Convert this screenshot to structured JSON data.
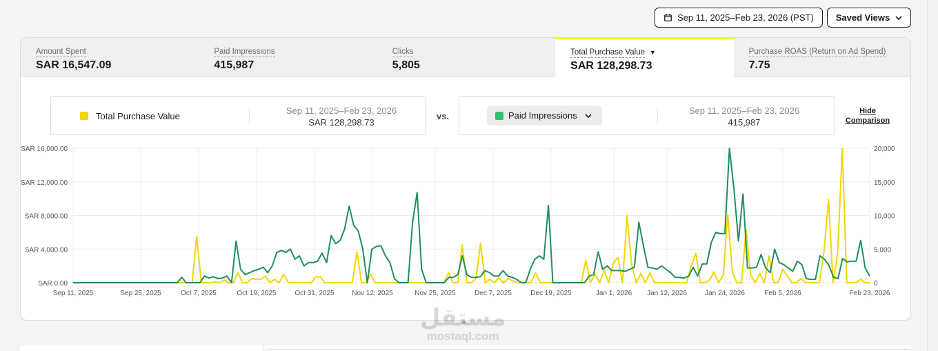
{
  "header": {
    "date_range_label": "Sep 11, 2025–Feb 23, 2026 (PST)",
    "saved_views_label": "Saved Views"
  },
  "metrics": [
    {
      "label": "Amount Spent",
      "value": "SAR 16,547.09"
    },
    {
      "label": "Paid Impressions",
      "value": "415,987"
    },
    {
      "label": "Clicks",
      "value": "5,805"
    },
    {
      "label": "Total Purchase Value",
      "value": "SAR 128,298.73"
    },
    {
      "label": "Purchase ROAS (Return on Ad Spend)",
      "value": "7.75"
    }
  ],
  "comparison": {
    "primary": {
      "name": "Total Purchase Value",
      "range": "Sep 11, 2025–Feb 23, 2026",
      "total": "SAR 128,298.73",
      "color": "#f2d600"
    },
    "vs_label": "vs.",
    "secondary": {
      "name": "Paid Impressions",
      "range": "Sep 11, 2025–Feb 23, 2026",
      "total": "415,987",
      "color": "#2fbf71"
    },
    "hide_label_line1": "Hide",
    "hide_label_line2": "Comparison"
  },
  "chart_data": {
    "type": "line",
    "x_start": "2025-09-11",
    "x_end": "2026-02-23",
    "x_ticks": [
      "Sep 11, 2025",
      "Sep 25, 2025",
      "Oct 7, 2025",
      "Oct 19, 2025",
      "Oct 31, 2025",
      "Nov 12, 2025",
      "Nov 25, 2025",
      "Dec 7, 2025",
      "Dec 19, 2025",
      "Jan 1, 2026",
      "Jan 12, 2026",
      "Jan 24, 2026",
      "Feb 5, 2026",
      "Feb 23, 2026"
    ],
    "y_left_ticks": [
      "SAR 0.00",
      "SAR 4,000.00",
      "SAR 8,000.00",
      "SAR 12,000.00",
      "SAR 16,000.00"
    ],
    "y_left_range": [
      0,
      16000
    ],
    "y_right_ticks": [
      "0",
      "5,000",
      "10,000",
      "15,000",
      "20,000"
    ],
    "y_right_range": [
      0,
      20000
    ],
    "grid": true,
    "series": [
      {
        "name": "Total Purchase Value",
        "axis": "left",
        "color": "#f2d600",
        "values": [
          0,
          0,
          0,
          0,
          0,
          0,
          0,
          0,
          0,
          0,
          0,
          0,
          0,
          0,
          0,
          0,
          0,
          0,
          0,
          0,
          0,
          0,
          0,
          0,
          0,
          0,
          0,
          5500,
          0,
          0,
          0,
          100,
          0,
          300,
          0,
          0,
          1200,
          0,
          0,
          500,
          400,
          400,
          800,
          0,
          400,
          0,
          1000,
          0,
          0,
          0,
          0,
          0,
          0,
          700,
          700,
          0,
          0,
          0,
          0,
          0,
          0,
          0,
          3700,
          0,
          0,
          1000,
          0,
          0,
          0,
          0,
          0,
          0,
          0,
          0,
          0,
          0,
          0,
          0,
          0,
          0,
          0,
          0,
          1200,
          0,
          0,
          4500,
          0,
          0,
          500,
          4700,
          0,
          400,
          0,
          600,
          0,
          500,
          200,
          0,
          0,
          0,
          0,
          1200,
          0,
          0,
          0,
          0,
          0,
          0,
          0,
          0,
          0,
          0,
          2700,
          0,
          1000,
          0,
          1500,
          0,
          2400,
          3000,
          0,
          8000,
          2200,
          0,
          1100,
          0,
          1200,
          0,
          0,
          0,
          0,
          0,
          0,
          0,
          0,
          2000,
          3500,
          0,
          0,
          300,
          1300,
          0,
          900,
          8100,
          1200,
          0,
          0,
          6300,
          900,
          0,
          1100,
          0,
          3200,
          0,
          0,
          1600,
          800,
          0,
          0,
          500,
          0,
          0,
          0,
          0,
          3600,
          9900,
          0,
          3500,
          16000,
          0,
          0,
          0,
          400,
          0,
          0
        ]
      },
      {
        "name": "Paid Impressions",
        "axis": "right",
        "color": "#1e8f5c",
        "values": [
          0,
          0,
          0,
          0,
          0,
          0,
          0,
          0,
          0,
          0,
          0,
          0,
          0,
          0,
          0,
          0,
          0,
          0,
          0,
          0,
          0,
          0,
          0,
          0,
          800,
          0,
          0,
          0,
          0,
          1000,
          700,
          900,
          600,
          700,
          1000,
          0,
          6200,
          2000,
          1200,
          1500,
          1800,
          2000,
          2300,
          1500,
          2500,
          4500,
          4800,
          4500,
          5000,
          3500,
          4000,
          2500,
          3000,
          3000,
          3200,
          4400,
          3000,
          7000,
          5800,
          6300,
          8000,
          11400,
          8500,
          7700,
          5000,
          0,
          5000,
          5400,
          5500,
          4000,
          3000,
          600,
          0,
          0,
          0,
          9000,
          13400,
          2000,
          0,
          0,
          0,
          0,
          0,
          800,
          800,
          1200,
          4000,
          1200,
          800,
          800,
          900,
          1800,
          1500,
          1000,
          1000,
          1800,
          1000,
          800,
          500,
          0,
          0,
          2000,
          3500,
          4000,
          3500,
          11500,
          0,
          0,
          0,
          0,
          0,
          0,
          0,
          0,
          1000,
          1200,
          4600,
          2000,
          2500,
          1800,
          1800,
          1800,
          1700,
          2000,
          2300,
          9000,
          5500,
          2300,
          2200,
          2000,
          2500,
          2000,
          1500,
          800,
          800,
          700,
          1000,
          2300,
          1000,
          2800,
          2800,
          6000,
          7500,
          7300,
          7300,
          20000,
          14000,
          6200,
          13200,
          2200,
          2200,
          2300,
          4200,
          2200,
          1500,
          5000,
          3000,
          2700,
          2200,
          1700,
          3200,
          2700,
          600,
          500,
          500,
          4000,
          3500,
          2600,
          800,
          600,
          3600,
          3100,
          3200,
          3200,
          6300,
          2200,
          1000
        ]
      }
    ]
  }
}
